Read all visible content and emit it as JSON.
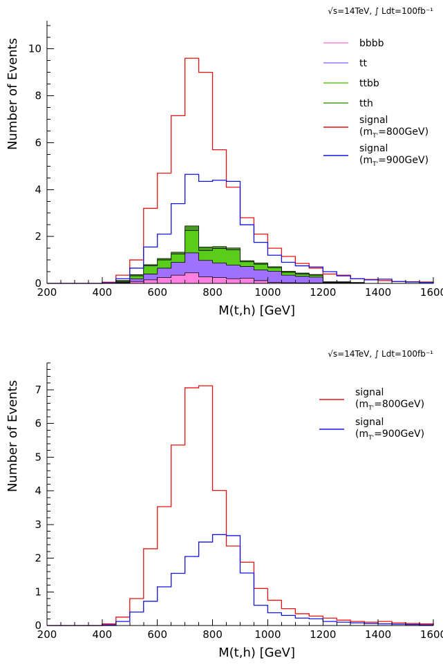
{
  "chart_data": [
    {
      "type": "histogram",
      "luminosity": "√s=14TeV, ∫ Ldt=100fb⁻¹",
      "xlabel": "M(t,h)  [GeV]",
      "ylabel": "Number of Events",
      "xlim": [
        200,
        1600
      ],
      "ylim": [
        0,
        11.2
      ],
      "xticks": [
        "200",
        "400",
        "600",
        "800",
        "1000",
        "1200",
        "1400",
        "1600"
      ],
      "yticks": [
        "0",
        "2",
        "4",
        "6",
        "8",
        "10"
      ],
      "ytick_values": [
        0,
        2,
        4,
        6,
        8,
        10
      ],
      "bin_edges": [
        200,
        250,
        300,
        350,
        400,
        450,
        500,
        550,
        600,
        650,
        700,
        750,
        800,
        850,
        900,
        950,
        1000,
        1050,
        1100,
        1150,
        1200,
        1250,
        1300,
        1350,
        1400,
        1450,
        1500,
        1550,
        1600
      ],
      "stacked_series": [
        {
          "name": "bbbb",
          "color": "#ff80e0",
          "values": [
            0,
            0,
            0,
            0,
            0,
            0.02,
            0.08,
            0.15,
            0.25,
            0.35,
            0.45,
            0.28,
            0.25,
            0.2,
            0.22,
            0.12,
            0.04,
            0.03,
            0.02,
            0.02,
            0.01,
            0.01,
            0,
            0,
            0,
            0,
            0,
            0
          ]
        },
        {
          "name": "tt",
          "color": "#a070ff",
          "values": [
            0,
            0,
            0,
            0,
            0,
            0.03,
            0.12,
            0.25,
            0.4,
            0.55,
            0.85,
            0.7,
            0.62,
            0.58,
            0.5,
            0.45,
            0.48,
            0.32,
            0.28,
            0.25,
            0.02,
            0.02,
            0.01,
            0,
            0,
            0,
            0,
            0
          ]
        },
        {
          "name": "ttbb",
          "color": "#5acc1a",
          "values": [
            0,
            0,
            0,
            0,
            0,
            0.04,
            0.12,
            0.35,
            0.35,
            0.35,
            0.95,
            0.42,
            0.62,
            0.65,
            0.2,
            0.25,
            0.15,
            0.12,
            0.1,
            0.08,
            0.02,
            0.02,
            0.01,
            0,
            0,
            0,
            0,
            0
          ]
        },
        {
          "name": "tth",
          "color": "#4a9a20",
          "values": [
            0,
            0,
            0,
            0,
            0,
            0.03,
            0.05,
            0.05,
            0.06,
            0.08,
            0.2,
            0.15,
            0.08,
            0.08,
            0.05,
            0.05,
            0.04,
            0.05,
            0.04,
            0.03,
            0.02,
            0.02,
            0.02,
            0,
            0,
            0,
            0,
            0
          ]
        }
      ],
      "line_series": [
        {
          "name": "signal",
          "name2": "(m",
          "name_sub": "T'",
          "name3": "=800GeV)",
          "color": "#e81010",
          "values": [
            0,
            0,
            0,
            0,
            0.05,
            0.35,
            1.0,
            3.2,
            4.7,
            7.15,
            9.6,
            9.0,
            5.7,
            4.1,
            2.8,
            2.1,
            1.5,
            1.15,
            0.85,
            0.65,
            0.4,
            0.35,
            0.2,
            0.17,
            0.12,
            0.08,
            0.07,
            0.06
          ]
        },
        {
          "name": "signal",
          "name2": "(m",
          "name_sub": "T'",
          "name3": "=900GeV)",
          "color": "#1010e0",
          "values": [
            0,
            0,
            0,
            0,
            0.02,
            0.2,
            0.65,
            1.55,
            2.1,
            3.4,
            4.65,
            4.35,
            4.4,
            4.35,
            2.5,
            1.75,
            1.2,
            0.9,
            0.75,
            0.7,
            0.5,
            0.32,
            0.2,
            0.15,
            0.18,
            0.08,
            0.06,
            0.04
          ]
        }
      ]
    },
    {
      "type": "histogram",
      "luminosity": "√s=14TeV, ∫ Ldt=100fb⁻¹",
      "xlabel": "M(t,h)  [GeV]",
      "ylabel": "Number of Events",
      "xlim": [
        200,
        1600
      ],
      "ylim": [
        0,
        7.8
      ],
      "xticks": [
        "200",
        "400",
        "600",
        "800",
        "1000",
        "1200",
        "1400",
        "1600"
      ],
      "yticks": [
        "0",
        "1",
        "2",
        "3",
        "4",
        "5",
        "6",
        "7"
      ],
      "ytick_values": [
        0,
        1,
        2,
        3,
        4,
        5,
        6,
        7
      ],
      "bin_edges": [
        200,
        250,
        300,
        350,
        400,
        450,
        500,
        550,
        600,
        650,
        700,
        750,
        800,
        850,
        900,
        950,
        1000,
        1050,
        1100,
        1150,
        1200,
        1250,
        1300,
        1350,
        1400,
        1450,
        1500,
        1550,
        1600
      ],
      "stacked_series": [],
      "line_series": [
        {
          "name": "signal",
          "name2": "(m",
          "name_sub": "T'",
          "name3": "=800GeV)",
          "color": "#e81010",
          "values": [
            0,
            0,
            0,
            0,
            0.05,
            0.25,
            0.8,
            2.28,
            3.53,
            5.36,
            7.06,
            7.12,
            4.01,
            2.36,
            1.88,
            1.1,
            0.75,
            0.5,
            0.35,
            0.28,
            0.22,
            0.16,
            0.12,
            0.1,
            0.12,
            0.08,
            0.06,
            0.05
          ]
        },
        {
          "name": "signal",
          "name2": "(m",
          "name_sub": "T'",
          "name3": "=900GeV)",
          "color": "#1010e0",
          "values": [
            0,
            0,
            0,
            0,
            0.02,
            0.12,
            0.4,
            0.72,
            1.15,
            1.55,
            2.05,
            2.48,
            2.7,
            2.67,
            1.56,
            0.6,
            0.38,
            0.3,
            0.22,
            0.2,
            0.12,
            0.1,
            0.08,
            0.06,
            0.05,
            0.04,
            0.03,
            0.02
          ]
        }
      ]
    }
  ]
}
